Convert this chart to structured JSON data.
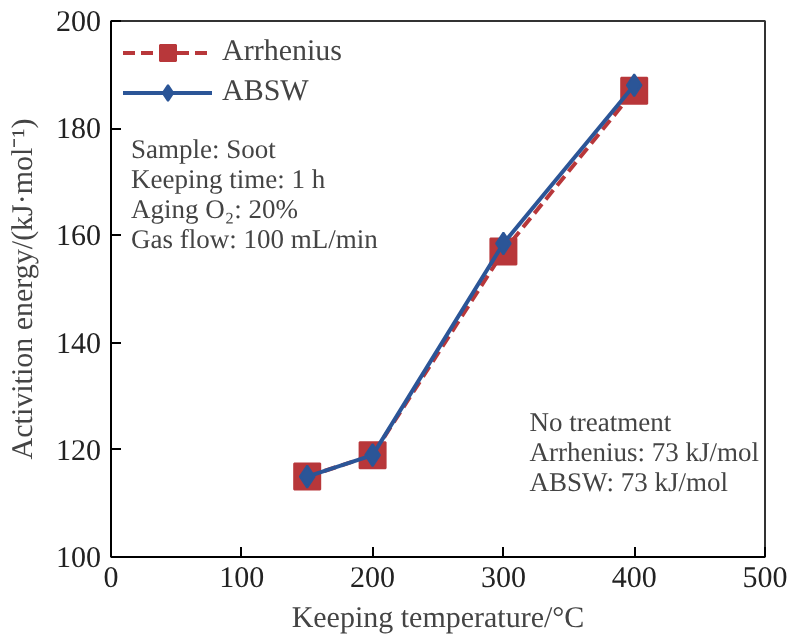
{
  "chart_data": {
    "type": "line",
    "xlabel": "Keeping temperature/°C",
    "ylabel": "Activition energy/(kJ·mol⁻¹)",
    "x": [
      150,
      200,
      300,
      400
    ],
    "series": [
      {
        "name": "Arrhenius",
        "color": "#b8373a",
        "values": [
          115,
          119,
          157,
          187
        ],
        "marker": "square",
        "line_style": "dashed"
      },
      {
        "name": "ABSW",
        "color": "#2b5597",
        "values": [
          115,
          119,
          158.5,
          188
        ],
        "marker": "diamond",
        "line_style": "solid"
      }
    ],
    "xlim": [
      0,
      500
    ],
    "xticks": [
      0,
      100,
      200,
      300,
      400,
      500
    ],
    "ylim": [
      100,
      200
    ],
    "yticks": [
      100,
      120,
      140,
      160,
      180,
      200
    ],
    "grid": false,
    "legend": "top left",
    "annotations": [
      "Sample: Soot\nKeeping time: 1 h\nAging O₂: 20%\nGas flow: 100 mL/min",
      "No treatment\nArrhenius: 73 kJ/mol\nABSW: 73 kJ/mol"
    ]
  }
}
